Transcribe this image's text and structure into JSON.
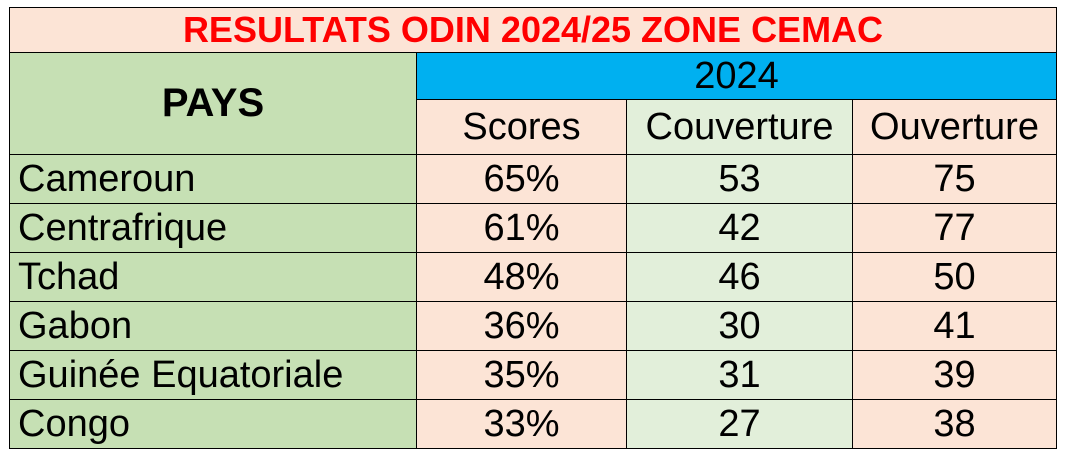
{
  "chart_data": {
    "type": "table",
    "title": "RESULTATS ODIN 2024/25 ZONE CEMAC",
    "row_header": "PAYS",
    "group_header": "2024",
    "columns": [
      "Scores",
      "Couverture",
      "Ouverture"
    ],
    "rows": [
      {
        "country": "Cameroun",
        "values": [
          "65%",
          "53",
          "75"
        ]
      },
      {
        "country": "Centrafrique",
        "values": [
          "61%",
          "42",
          "77"
        ]
      },
      {
        "country": "Tchad",
        "values": [
          "48%",
          "46",
          "50"
        ]
      },
      {
        "country": "Gabon",
        "values": [
          "36%",
          "30",
          "41"
        ]
      },
      {
        "country": "Guinée Equatoriale",
        "values": [
          "35%",
          "31",
          "39"
        ]
      },
      {
        "country": "Congo",
        "values": [
          "33%",
          "27",
          "38"
        ]
      }
    ]
  },
  "colors": {
    "title_text": "#ff0000",
    "title_bg": "#fce4d6",
    "country_bg": "#c6e0b4",
    "year_bg": "#00b0f0",
    "salmon_bg": "#fce4d6",
    "green_bg": "#e2efda"
  }
}
